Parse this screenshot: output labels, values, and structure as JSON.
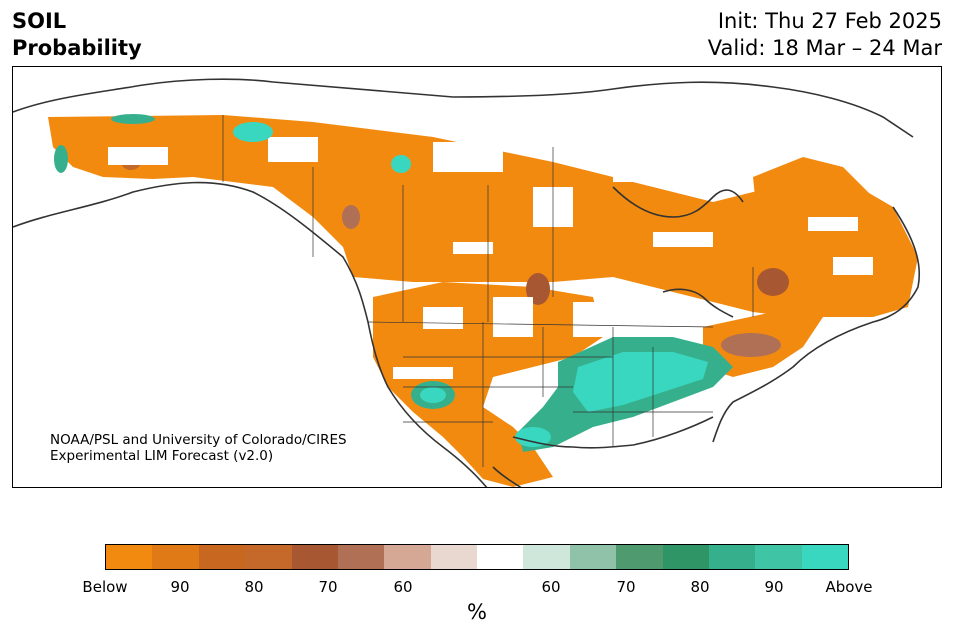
{
  "header": {
    "variable": "SOIL",
    "subtitle": "Probability",
    "init": "Init: Thu 27 Feb 2025",
    "valid": "Valid: 18 Mar – 24 Mar"
  },
  "map": {
    "region": "North America",
    "credit_line1": "NOAA/PSL and University of Colorado/CIRES",
    "credit_line2": "Experimental LIM Forecast (v2.0)",
    "colors": {
      "below_strong": "#f28a10",
      "below_mid": "#c8671f",
      "below_dark": "#b0683f",
      "below_light": "#e9d8cf",
      "above_light": "#cfe6db",
      "above_mid": "#4f9b6f",
      "above_strong": "#3ad7c0",
      "coast": "#333333"
    }
  },
  "colorbar": {
    "unit_label": "%",
    "segments": [
      "#f28a10",
      "#e07a16",
      "#c8671f",
      "#c4692a",
      "#a85733",
      "#b07055",
      "#d4a894",
      "#e9d8cf",
      "#ffffff",
      "#cfe6db",
      "#8fc2a8",
      "#4f9b6f",
      "#2f9567",
      "#36b08c",
      "#3fc4a6",
      "#3ad7c0"
    ],
    "tick_labels": [
      "Below",
      "90",
      "80",
      "70",
      "60",
      "60",
      "70",
      "80",
      "90",
      "Above"
    ]
  }
}
